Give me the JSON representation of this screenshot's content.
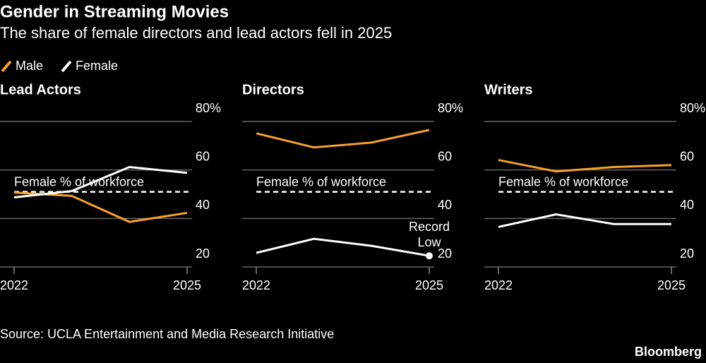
{
  "title": "Gender in Streaming Movies",
  "subtitle": "The share of female directors and lead actors fell in 2025",
  "source": "Source: UCLA Entertainment and Media Research Initiative",
  "brand": "Bloomberg",
  "chart_data": [
    {
      "type": "line",
      "title": "Lead Actors",
      "categories": [
        "2022",
        null,
        null,
        "2025"
      ],
      "series": [
        {
          "name": "Male",
          "color": "#f5a030",
          "values": [
            50.7,
            49.3,
            38.6,
            42.3
          ]
        },
        {
          "name": "Female",
          "color": "#ffffff",
          "values": [
            48.7,
            51.3,
            61.2,
            58.8
          ]
        }
      ],
      "reference": {
        "label": "Female % of workforce",
        "value": 51
      },
      "ylim": [
        20,
        80
      ],
      "yticks": [
        20,
        40,
        60,
        {
          "value": 80,
          "label": "80%"
        }
      ],
      "grid": true
    },
    {
      "type": "line",
      "title": "Directors",
      "categories": [
        "2022",
        null,
        null,
        "2025"
      ],
      "series": [
        {
          "name": "Male",
          "color": "#f5a030",
          "values": [
            75.1,
            69.3,
            71.3,
            76.5
          ]
        },
        {
          "name": "Female",
          "color": "#ffffff",
          "values": [
            25.8,
            31.6,
            28.7,
            24.6
          ]
        }
      ],
      "reference": {
        "label": "Female % of workforce",
        "value": 51
      },
      "annotation": [
        "Record",
        "Low"
      ],
      "ylim": [
        20,
        80
      ],
      "yticks": [
        20,
        40,
        60,
        {
          "value": 80,
          "label": "80%"
        }
      ],
      "grid": true
    },
    {
      "type": "line",
      "title": "Writers",
      "categories": [
        "2022",
        null,
        null,
        "2025"
      ],
      "series": [
        {
          "name": "Male",
          "color": "#f5a030",
          "values": [
            64.1,
            59.4,
            61.2,
            62.0
          ]
        },
        {
          "name": "Female",
          "color": "#ffffff",
          "values": [
            36.5,
            41.7,
            37.7,
            37.7
          ]
        }
      ],
      "reference": {
        "label": "Female % of workforce",
        "value": 51
      },
      "ylim": [
        20,
        80
      ],
      "yticks": [
        20,
        40,
        60,
        {
          "value": 80,
          "label": "80%"
        }
      ],
      "grid": true
    }
  ]
}
